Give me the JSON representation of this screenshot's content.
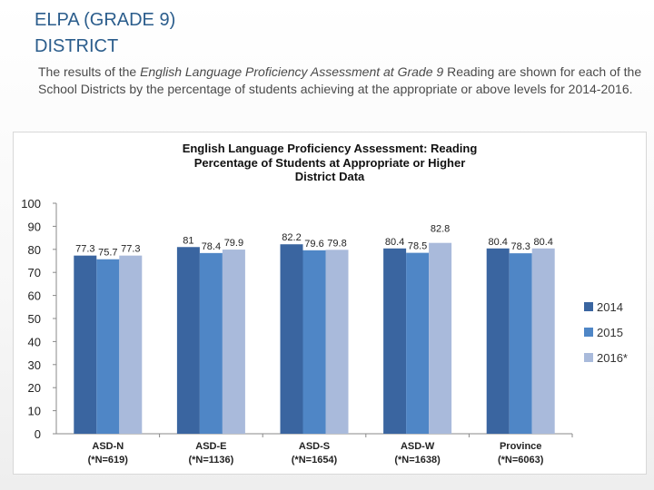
{
  "slide": {
    "title_line1": "ELPA (GRADE 9)",
    "title_line2": "DISTRICT",
    "desc_pre": "The results of the ",
    "desc_em1": "English Language Proficiency Assessment at Grade 9",
    "desc_post": " Reading are shown for each of the School Districts by the percentage of students achieving at the appropriate or above levels for 2014-2016."
  },
  "colors": {
    "title": "#2b5d8c",
    "series": [
      "#3a65a0",
      "#4f86c6",
      "#a9badb"
    ]
  },
  "chart_data": {
    "type": "bar",
    "title": [
      "English Language Proficiency Assessment: Reading",
      "Percentage of Students at Appropriate or Higher",
      "District Data"
    ],
    "categories": [
      "ASD-N",
      "ASD-E",
      "ASD-S",
      "ASD-W",
      "Province"
    ],
    "category_notes": [
      "(*N=619)",
      "(*N=1136)",
      "(*N=1654)",
      "(*N=1638)",
      "(*N=6063)"
    ],
    "series": [
      {
        "name": "2014",
        "values": [
          77.3,
          81,
          82.2,
          80.4,
          80.4
        ]
      },
      {
        "name": "2015",
        "values": [
          75.7,
          78.4,
          79.6,
          78.5,
          78.3
        ]
      },
      {
        "name": "2016*",
        "values": [
          77.3,
          79.9,
          79.8,
          82.8,
          80.4
        ]
      }
    ],
    "value_labels": [
      [
        "77.3",
        "81",
        "82.2",
        "80.4",
        "80.4"
      ],
      [
        "75.7",
        "78.4",
        "79.6",
        "78.5",
        "78.3"
      ],
      [
        "77.3",
        "79.9",
        "79.8",
        "82.8",
        "80.4"
      ]
    ],
    "ylim": [
      0,
      100
    ],
    "yticks": [
      0,
      10,
      20,
      30,
      40,
      50,
      60,
      70,
      80,
      90,
      100
    ],
    "grid": false,
    "legend": "right"
  }
}
